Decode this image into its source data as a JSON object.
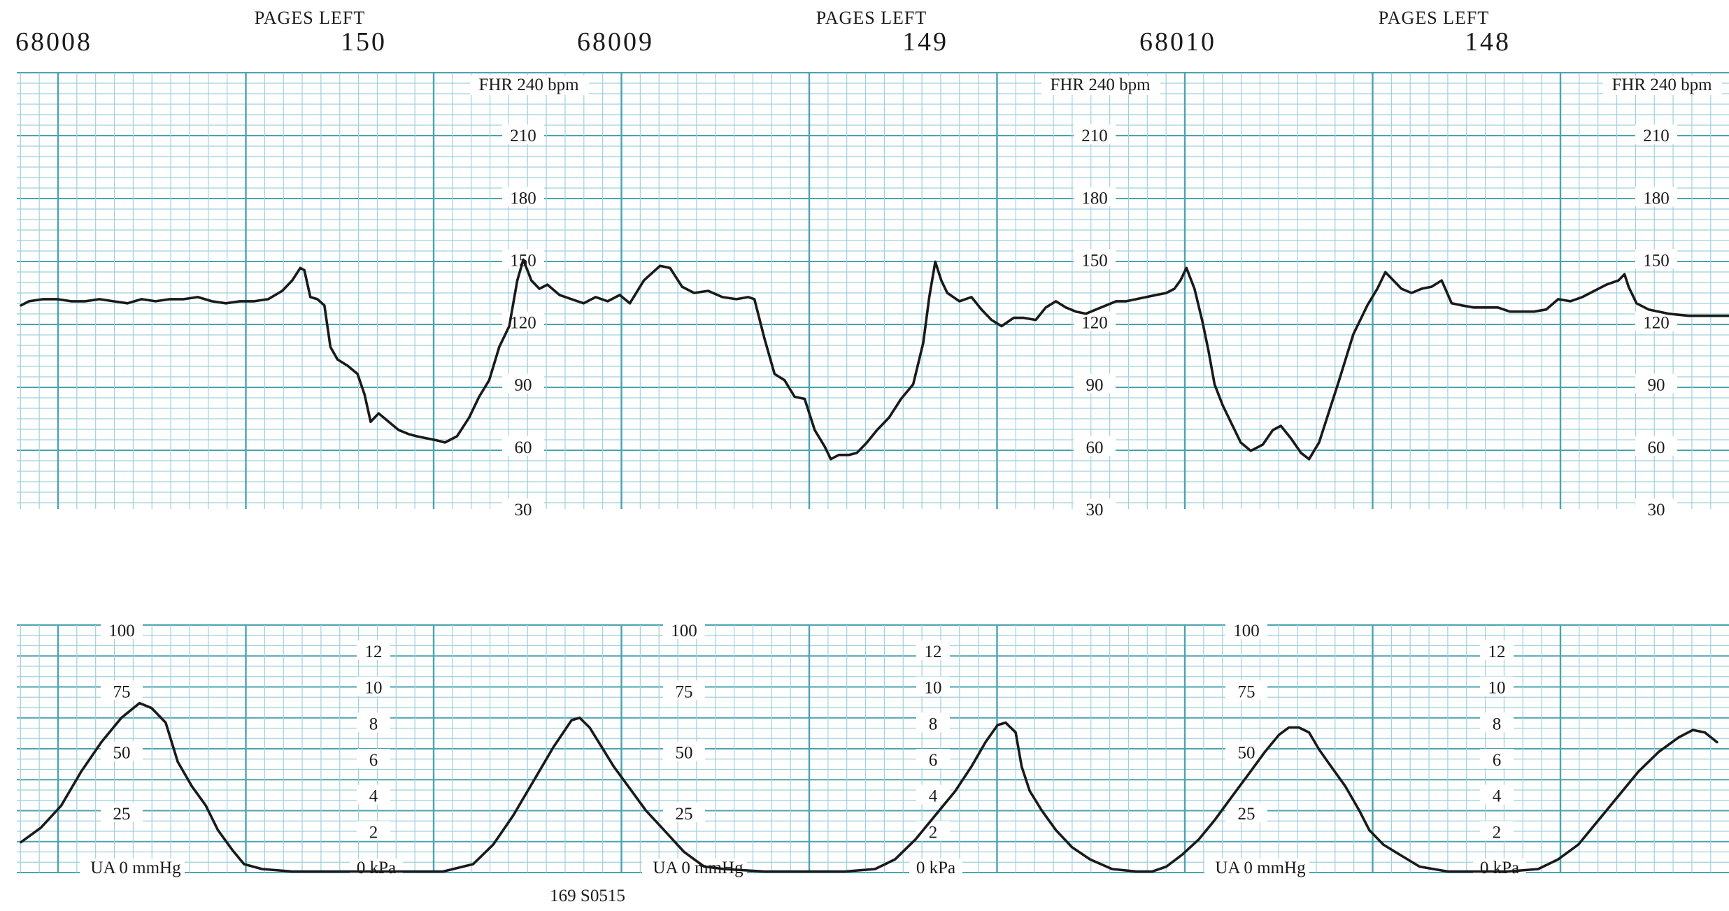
{
  "header": {
    "pages_left_label": "PAGES LEFT",
    "pages": [
      {
        "id": "68008",
        "pages_left": "150"
      },
      {
        "id": "68009",
        "pages_left": "149"
      },
      {
        "id": "68010",
        "pages_left": "148"
      }
    ]
  },
  "footer": {
    "code": "169 S0515"
  },
  "colors": {
    "grid_major": "#4aa3b0",
    "grid_minor": "#9fd1db",
    "trace": "#1a1a1a",
    "background": "#ffffff"
  },
  "chart_data": [
    {
      "type": "line",
      "title": "",
      "ylabel": "FHR 240 bpm",
      "ylim": [
        30,
        240
      ],
      "y_ticks": [
        "210",
        "180",
        "150",
        "120",
        "90",
        "60",
        "30"
      ],
      "grid": true,
      "series": [
        {
          "values_note": "",
          "points": [
            [
              0,
              128
            ],
            [
              8,
              130
            ],
            [
              22,
              131
            ],
            [
              36,
              131
            ],
            [
              50,
              130
            ],
            [
              64,
              130
            ],
            [
              78,
              131
            ],
            [
              92,
              130
            ],
            [
              106,
              129
            ],
            [
              120,
              131
            ],
            [
              134,
              130
            ],
            [
              148,
              131
            ],
            [
              162,
              131
            ],
            [
              176,
              132
            ],
            [
              190,
              130
            ],
            [
              204,
              129
            ],
            [
              218,
              130
            ],
            [
              232,
              130
            ],
            [
              246,
              131
            ],
            [
              260,
              135
            ],
            [
              270,
              140
            ],
            [
              278,
              146
            ],
            [
              282,
              145
            ],
            [
              288,
              132
            ],
            [
              295,
              131
            ],
            [
              302,
              128
            ],
            [
              308,
              108
            ],
            [
              315,
              102
            ],
            [
              325,
              99
            ],
            [
              335,
              95
            ],
            [
              342,
              85
            ],
            [
              348,
              72
            ],
            [
              356,
              76
            ],
            [
              366,
              72
            ],
            [
              376,
              68
            ],
            [
              386,
              66
            ],
            [
              394,
              65
            ],
            [
              404,
              64
            ],
            [
              414,
              63
            ],
            [
              422,
              62
            ],
            [
              434,
              65
            ],
            [
              446,
              74
            ],
            [
              456,
              84
            ],
            [
              466,
              92
            ],
            [
              476,
              108
            ],
            [
              486,
              118
            ],
            [
              494,
              140
            ],
            [
              500,
              150
            ],
            [
              508,
              140
            ],
            [
              516,
              136
            ],
            [
              524,
              138
            ],
            [
              536,
              133
            ],
            [
              548,
              131
            ],
            [
              560,
              129
            ],
            [
              572,
              132
            ],
            [
              584,
              130
            ],
            [
              596,
              133
            ],
            [
              606,
              129
            ],
            [
              620,
              140
            ],
            [
              636,
              147
            ],
            [
              646,
              146
            ],
            [
              658,
              137
            ],
            [
              670,
              134
            ],
            [
              684,
              135
            ],
            [
              698,
              132
            ],
            [
              712,
              131
            ],
            [
              724,
              132
            ],
            [
              730,
              131
            ],
            [
              740,
              112
            ],
            [
              750,
              95
            ],
            [
              760,
              92
            ],
            [
              770,
              84
            ],
            [
              780,
              83
            ],
            [
              790,
              68
            ],
            [
              800,
              60
            ],
            [
              806,
              54
            ],
            [
              814,
              56
            ],
            [
              824,
              56
            ],
            [
              832,
              57
            ],
            [
              842,
              62
            ],
            [
              852,
              68
            ],
            [
              864,
              74
            ],
            [
              876,
              83
            ],
            [
              888,
              90
            ],
            [
              898,
              110
            ],
            [
              904,
              132
            ],
            [
              910,
              149
            ],
            [
              916,
              140
            ],
            [
              922,
              134
            ],
            [
              934,
              130
            ],
            [
              946,
              132
            ],
            [
              956,
              126
            ],
            [
              966,
              121
            ],
            [
              976,
              118
            ],
            [
              988,
              122
            ],
            [
              998,
              122
            ],
            [
              1010,
              121
            ],
            [
              1020,
              127
            ],
            [
              1030,
              130
            ],
            [
              1040,
              127
            ],
            [
              1050,
              125
            ],
            [
              1060,
              124
            ],
            [
              1070,
              126
            ],
            [
              1080,
              128
            ],
            [
              1090,
              130
            ],
            [
              1100,
              130
            ],
            [
              1110,
              131
            ],
            [
              1120,
              132
            ],
            [
              1130,
              133
            ],
            [
              1140,
              134
            ],
            [
              1148,
              136
            ],
            [
              1154,
              140
            ],
            [
              1160,
              146
            ],
            [
              1168,
              136
            ],
            [
              1176,
              120
            ],
            [
              1182,
              106
            ],
            [
              1188,
              90
            ],
            [
              1196,
              80
            ],
            [
              1204,
              72
            ],
            [
              1214,
              62
            ],
            [
              1224,
              58
            ],
            [
              1236,
              61
            ],
            [
              1246,
              68
            ],
            [
              1254,
              70
            ],
            [
              1264,
              64
            ],
            [
              1274,
              57
            ],
            [
              1282,
              54
            ],
            [
              1292,
              62
            ],
            [
              1300,
              74
            ],
            [
              1312,
              92
            ],
            [
              1326,
              114
            ],
            [
              1340,
              128
            ],
            [
              1350,
              136
            ],
            [
              1358,
              144
            ],
            [
              1366,
              140
            ],
            [
              1374,
              136
            ],
            [
              1384,
              134
            ],
            [
              1394,
              136
            ],
            [
              1404,
              137
            ],
            [
              1414,
              140
            ],
            [
              1424,
              129
            ],
            [
              1434,
              128
            ],
            [
              1446,
              127
            ],
            [
              1458,
              127
            ],
            [
              1470,
              127
            ],
            [
              1482,
              125
            ],
            [
              1494,
              125
            ],
            [
              1506,
              125
            ],
            [
              1518,
              126
            ],
            [
              1530,
              131
            ],
            [
              1542,
              130
            ],
            [
              1554,
              132
            ],
            [
              1566,
              135
            ],
            [
              1578,
              138
            ],
            [
              1590,
              140
            ],
            [
              1596,
              143
            ],
            [
              1600,
              137
            ],
            [
              1608,
              129
            ],
            [
              1620,
              126
            ],
            [
              1640,
              124
            ],
            [
              1660,
              123
            ],
            [
              1680,
              123
            ],
            [
              1700,
              123
            ]
          ]
        }
      ]
    },
    {
      "type": "line",
      "title": "",
      "ylabel": "UA 0 mmHg",
      "ylim": [
        0,
        100
      ],
      "y_ticks": [
        "100",
        "75",
        "50",
        "25"
      ],
      "secondary_axis": {
        "label": "0 kPa",
        "ticks": [
          "12",
          "10",
          "8",
          "6",
          "4",
          "2"
        ]
      },
      "grid": true,
      "series": [
        {
          "values_note": "",
          "points": [
            [
              0,
              13
            ],
            [
              20,
              19
            ],
            [
              40,
              28
            ],
            [
              60,
              42
            ],
            [
              80,
              54
            ],
            [
              100,
              64
            ],
            [
              118,
              70
            ],
            [
              130,
              68
            ],
            [
              144,
              62
            ],
            [
              156,
              46
            ],
            [
              170,
              36
            ],
            [
              184,
              28
            ],
            [
              196,
              18
            ],
            [
              210,
              10
            ],
            [
              222,
              4
            ],
            [
              240,
              2
            ],
            [
              270,
              1
            ],
            [
              300,
              1
            ],
            [
              340,
              1
            ],
            [
              380,
              1
            ],
            [
              420,
              1
            ],
            [
              450,
              4
            ],
            [
              470,
              12
            ],
            [
              490,
              24
            ],
            [
              510,
              38
            ],
            [
              530,
              52
            ],
            [
              548,
              63
            ],
            [
              556,
              64
            ],
            [
              566,
              60
            ],
            [
              578,
              52
            ],
            [
              590,
              44
            ],
            [
              606,
              35
            ],
            [
              622,
              26
            ],
            [
              640,
              18
            ],
            [
              660,
              9
            ],
            [
              680,
              3
            ],
            [
              700,
              2
            ],
            [
              740,
              1
            ],
            [
              780,
              1
            ],
            [
              820,
              1
            ],
            [
              850,
              2
            ],
            [
              870,
              6
            ],
            [
              890,
              14
            ],
            [
              910,
              24
            ],
            [
              930,
              34
            ],
            [
              946,
              44
            ],
            [
              960,
              54
            ],
            [
              972,
              61
            ],
            [
              980,
              62
            ],
            [
              990,
              58
            ],
            [
              996,
              44
            ],
            [
              1004,
              34
            ],
            [
              1016,
              26
            ],
            [
              1030,
              18
            ],
            [
              1046,
              11
            ],
            [
              1064,
              6
            ],
            [
              1086,
              2
            ],
            [
              1110,
              1
            ],
            [
              1126,
              1
            ],
            [
              1140,
              3
            ],
            [
              1156,
              8
            ],
            [
              1172,
              14
            ],
            [
              1188,
              22
            ],
            [
              1204,
              31
            ],
            [
              1222,
              41
            ],
            [
              1238,
              50
            ],
            [
              1252,
              57
            ],
            [
              1262,
              60
            ],
            [
              1272,
              60
            ],
            [
              1282,
              58
            ],
            [
              1292,
              51
            ],
            [
              1304,
              44
            ],
            [
              1318,
              36
            ],
            [
              1332,
              26
            ],
            [
              1342,
              18
            ],
            [
              1356,
              12
            ],
            [
              1372,
              8
            ],
            [
              1392,
              3
            ],
            [
              1420,
              1
            ],
            [
              1450,
              1
            ],
            [
              1480,
              1
            ],
            [
              1510,
              2
            ],
            [
              1530,
              6
            ],
            [
              1550,
              12
            ],
            [
              1570,
              22
            ],
            [
              1590,
              32
            ],
            [
              1610,
              42
            ],
            [
              1630,
              50
            ],
            [
              1650,
              56
            ],
            [
              1664,
              59
            ],
            [
              1676,
              58
            ],
            [
              1688,
              54
            ]
          ]
        }
      ]
    }
  ]
}
